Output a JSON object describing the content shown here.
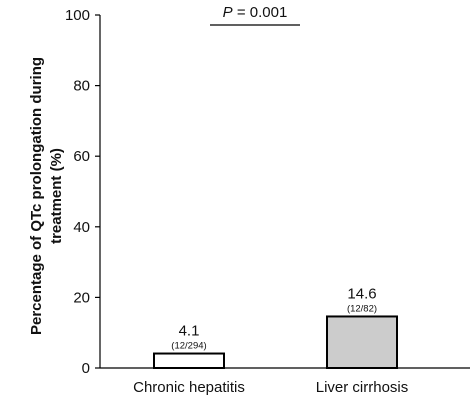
{
  "chart_data": {
    "type": "bar",
    "categories": [
      "Chronic hepatitis",
      "Liver cirrhosis"
    ],
    "values": [
      4.1,
      14.6
    ],
    "value_labels": [
      "4.1",
      "14.6"
    ],
    "count_labels": [
      "(12/294)",
      "(12/82)"
    ],
    "bar_fills": [
      "#ffffff",
      "#cccccc"
    ],
    "ylabel_lines": [
      "Percentage of QTc prolongation during",
      "treatment  (%)"
    ],
    "ylim": [
      0,
      100
    ],
    "yticks": [
      0,
      20,
      40,
      60,
      80,
      100
    ],
    "grid": false,
    "annotation": {
      "p_symbol": "P",
      "p_text": " = 0.001"
    }
  }
}
